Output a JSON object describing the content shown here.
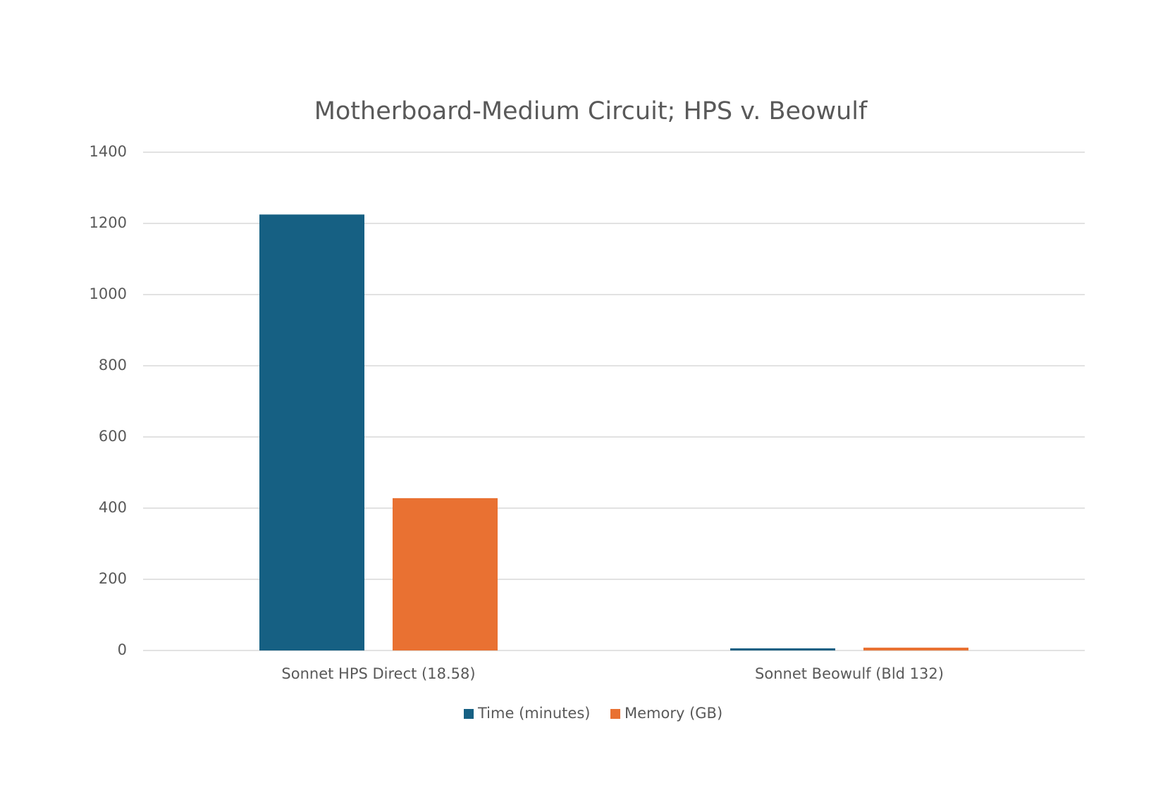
{
  "chart_data": {
    "type": "bar",
    "title": "Motherboard-Medium Circuit; HPS v. Beowulf",
    "categories": [
      "Sonnet HPS Direct (18.58)",
      "Sonnet Beowulf (Bld 132)"
    ],
    "series": [
      {
        "name": "Time (minutes)",
        "color": "#166083",
        "values": [
          1225,
          6
        ]
      },
      {
        "name": "Memory (GB)",
        "color": "#e97132",
        "values": [
          428,
          8
        ]
      }
    ],
    "ylim": [
      0,
      1400
    ],
    "yticks": [
      0,
      200,
      400,
      600,
      800,
      1000,
      1200,
      1400
    ],
    "grid": true,
    "legend": "bottom"
  }
}
